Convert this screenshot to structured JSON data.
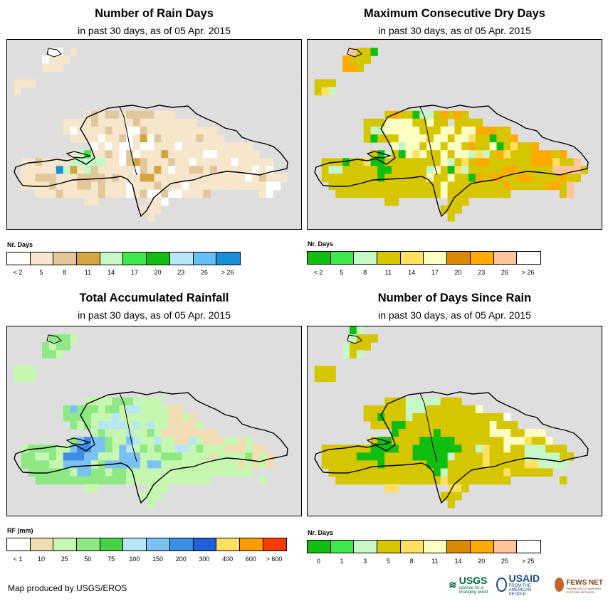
{
  "panels": [
    {
      "id": "rain-days",
      "title": "Number of Rain Days",
      "subtitle": "in past 30 days, as of 05 Apr. 2015",
      "legend_title": "Nr. Days",
      "legend_colors": [
        "#ffffff",
        "#f5e6cc",
        "#e2c79b",
        "#d3a53e",
        "#c6f7c6",
        "#3ee84a",
        "#11bd11",
        "#b6e6f7",
        "#66bff2",
        "#1a8fd6"
      ],
      "legend_labels": [
        "< 2",
        "5",
        "8",
        "11",
        "14",
        "17",
        "20",
        "23",
        "26",
        "> 26"
      ],
      "grid": [
        "..........................................",
        "......ww.t................................",
        ".....wttt.................................",
        ".....ttt..................................",
        "..........................................",
        ".ttt......................................",
        ".t........................................",
        "..........................................",
        "..........................................",
        "...........tltlltllllttt..................",
        "........ttttltttttltttttttt...............",
        "........twttttlttwwltttttttttt............",
        ".........ttttwttlwtbwltttttlttt...........",
        "............wtwtwwtwwtttwtttttttttt.......",
        ".........tgGttltwlwtttbtttttwwtttttt......",
        "..ttlttttgggggttwlbltttlttwtttttwttttt....",
        "..tttttBgbtgltttttwltbtwttlltltttttwtw....",
        "..ttllltttlllltltttbbtttttttttttttwtlttt..",
        "..ttttltttlltltttwtttltttwtttttttttttww...",
        "....tttltttttltttwtlwwlwwtttl.......tw....",
        "...........tt.......ttw...................",
        "...................ttt....................",
        "....................t.....................",
        ".........................................."
      ]
    },
    {
      "id": "dry-days",
      "title": "Maximum Consecutive Dry Days",
      "subtitle": "in past 30 days, as of 05 Apr. 2015",
      "legend_title": "Nr. Days",
      "legend_colors": [
        "#11bd11",
        "#3ee84a",
        "#c6f7c6",
        "#d6c600",
        "#ffe060",
        "#ffffc4",
        "#da8a00",
        "#ffaa00",
        "#ffc49a",
        "#ffffff"
      ],
      "legend_labels": [
        "< 2",
        "5",
        "8",
        "11",
        "14",
        "17",
        "20",
        "23",
        "26",
        "> 26"
      ],
      "grid": [
        "..........................................",
        "......pyyG................................",
        ".....oyyy.................................",
        ".....ooy..................................",
        "..........................................",
        ".yyy......................................",
        ".yYg......................................",
        "..........................................",
        "..........................................",
        "...........yoyyGggyoyoy...................",
        "........yyymcmcyycyy.yyyy.................",
        "........yggccmccyyyccyccoooyy.............",
        "........yGyyyccmmyccyccYyyGyyo............",
        "............cgccyccyccyoyycGyYyyo.........",
        ".........yGgyGcYcyycyccgYgyoYyyyoooyo.....",
        "..yyyGyyYGGyyyyyyyycgyYyooyyyyyyoooYyyp...",
        "..yggyyyyyGGyyyyygcyGYgyyyyyooyyyyyppppy..",
        "..yyyyyyyyGyyyyyycyycyyGoyooyyooyyyyoyy...",
        "...yyyyyyyyyyyyyyyycyyyyyyyyoyyyyyooyp....",
        "....yyyyyyyyyyyyyyycyyyyyyyyy.......yp....",
        "...........yy.......yyy...................",
        "...................yyy....................",
        "....................y.....................",
        ".........................................."
      ]
    },
    {
      "id": "rainfall",
      "title": "Total Accumulated Rainfall",
      "subtitle": "in past 30 days, as of 05 Apr. 2015",
      "legend_title": "RF (mm)",
      "legend_colors": [
        "#ffffff",
        "#f2dcb4",
        "#c6f7b0",
        "#8ee884",
        "#46d246",
        "#b6e6f7",
        "#7ac2f2",
        "#3d8de6",
        "#2060d8",
        "#ffe060",
        "#ff9a00",
        "#ff3a00"
      ],
      "legend_labels": [
        "< 1",
        "10",
        "25",
        "50",
        "75",
        "100",
        "150",
        "200",
        "300",
        "400",
        "600",
        "> 600"
      ],
      "grid": [
        "..........................................",
        "......GGGg................................",
        ".....GgGG.................................",
        ".....GGg..................................",
        "..........................................",
        ".ggg......................................",
        ".ggg......................................",
        "..........................................",
        "..........................................",
        "...........ggggGGGgggg....................",
        "........GbGGGgGGgllggggtt.................",
        "........GGGGggglgggggggttgt...............",
        ".........GgGgllllglglggttttg..............",
        "............gGggglggGgtttttttt............",
        ".........GbBbbGggblgglggttlgtttggtg.......",
        "..gGGGGggbBBbbGgblgGgGggllgGgggtttgtt.....",
        "..GGggGgBBBbbgggbbbgggGGGggggtggggGtgt....",
        "..GGGGggbbbbgGbbbbbgbbgggggggggggtgtgt....",
        "...GGGGGGgbbGGgGGgggggggggggggggggg.......",
        "....GGGGGGGGGGGGGgggggggggggg.......g.....",
        "...........gg.......ggg...................",
        "...................ggg....................",
        "....................g.....................",
        ".........................................."
      ]
    },
    {
      "id": "since-rain",
      "title": "Number of Days Since Rain",
      "subtitle": "in past 30 days, as of 05 Apr. 2015",
      "legend_title": "Nr. Days",
      "legend_colors": [
        "#11bd11",
        "#3ee84a",
        "#c6f7c6",
        "#d6c600",
        "#ffe060",
        "#ffffc4",
        "#da8a00",
        "#ffaa00",
        "#ffc49a",
        "#ffffff"
      ],
      "legend_labels": [
        "0",
        "1",
        "3",
        "5",
        "8",
        "11",
        "14",
        "20",
        "25",
        "> 25"
      ],
      "grid": [
        "......Gg..................................",
        "......gyyy................................",
        ".....gyyy.................................",
        ".....gyg..................................",
        "..........................................",
        ".yyy......................................",
        ".yyy......................................",
        "..........................................",
        "..........................................",
        "...........yyygggggyyy....................",
        "........yyyyyygggyyyyyyyc.................",
        "........yyGyyygyyyyyyyyyyyyyw.............",
        ".........yyyGGyyyyyyyyyyyycyyy............",
        "............GyyyyyGyyyyyyycccyyccc........",
        ".........yGGyyyyGGGGGyyyyyyycccYyyc.......",
        "..yyyyyyyGGGGyyGGGGGGGyygYyycyygggyyy.....",
        "..yyyyyGGGGyyyyGGGGGgyyyyYyyyyygggggyy....",
        "..yyyyyyyyGyyyyyyGGGyyyyyYyyyyyYYgggg.....",
        "...yyyyyyyyyyyyyyyGgyyyyyyyyYyyyyyy.......",
        "....yyyyyyyyyyyyyyyYyyyyyyyyy.......y.....",
        "...........YY.......YYy...................",
        "...................yyy....................",
        "....................y.....................",
        ".........................................."
      ]
    }
  ],
  "palette_keys": {
    "rain-days": {
      "w": "#ffffff",
      "t": "#f5e6cc",
      "l": "#e2c79b",
      "b": "#d3a53e",
      "g": "#c6f7c6",
      "G": "#3ee84a",
      "B": "#1a8fd6"
    },
    "dry-days": {
      "y": "#d6c600",
      "Y": "#ffe060",
      "c": "#ffffc4",
      "m": "#ffffc4",
      "o": "#ffaa00",
      "p": "#ffc49a",
      "g": "#c6f7c6",
      "G": "#11bd11"
    },
    "rainfall": {
      "t": "#f2dcb4",
      "g": "#c6f7b0",
      "G": "#8ee884",
      "l": "#b6e6f7",
      "b": "#7ac2f2",
      "B": "#3d8de6"
    },
    "since-rain": {
      "y": "#d6c600",
      "Y": "#ffe060",
      "c": "#ffffc4",
      "w": "#ffffff",
      "g": "#c6f7c6",
      "G": "#11bd11"
    }
  },
  "credit": "Map produced by USGS/EROS",
  "logos": {
    "usgs": "USGS",
    "usgs_tagline": "science for a changing world",
    "usaid": "USAID",
    "usaid_tagline": "FROM THE AMERICAN PEOPLE",
    "fews": "FEWS NET",
    "fews_tagline": "FAMINE EARLY WARNING SYSTEMS NETWORK"
  }
}
